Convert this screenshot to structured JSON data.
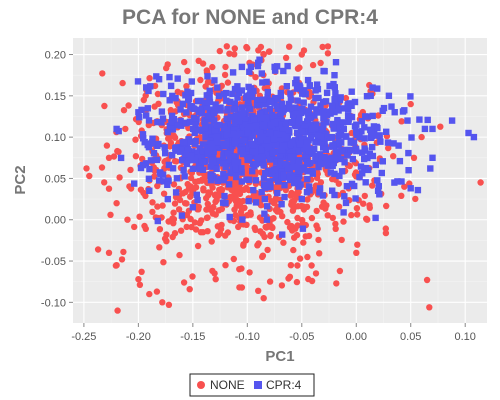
{
  "chart_data": {
    "type": "scatter",
    "title": "PCA for NONE and CPR:4",
    "xlabel": "PC1",
    "ylabel": "PC2",
    "xlim": [
      -0.26,
      0.12
    ],
    "ylim": [
      -0.125,
      0.22
    ],
    "xticks": [
      "-0.25",
      "-0.20",
      "-0.15",
      "-0.10",
      "-0.05",
      "0.00",
      "0.05",
      "0.10"
    ],
    "xtick_values": [
      -0.25,
      -0.2,
      -0.15,
      -0.1,
      -0.05,
      0.0,
      0.05,
      0.1
    ],
    "yticks": [
      "-0.10",
      "-0.05",
      "0.00",
      "0.05",
      "0.10",
      "0.15",
      "0.20"
    ],
    "ytick_values": [
      -0.1,
      -0.05,
      0.0,
      0.05,
      0.1,
      0.15,
      0.2
    ],
    "grid": true,
    "legend_position": "bottom",
    "series": [
      {
        "name": "NONE",
        "marker": "circle",
        "color": "#f8504f",
        "cluster": {
          "center": [
            -0.1,
            0.07
          ],
          "spread": [
            0.055,
            0.055
          ],
          "count": 1100
        },
        "points": [
          [
            -0.245,
            0.053
          ],
          [
            -0.237,
            -0.036
          ],
          [
            -0.215,
            -0.048
          ],
          [
            -0.22,
            -0.055
          ],
          [
            -0.197,
            -0.063
          ],
          [
            -0.183,
            -0.087
          ],
          [
            -0.178,
            -0.1
          ],
          [
            -0.158,
            -0.076
          ],
          [
            -0.172,
            -0.103
          ],
          [
            -0.2,
            -0.072
          ],
          [
            -0.085,
            -0.095
          ],
          [
            -0.09,
            -0.086
          ],
          [
            -0.13,
            -0.065
          ],
          [
            -0.12,
            -0.055
          ],
          [
            0.067,
            -0.106
          ],
          [
            0.065,
            -0.073
          ],
          [
            -0.037,
            -0.065
          ],
          [
            -0.06,
            -0.055
          ],
          [
            -0.015,
            -0.062
          ],
          [
            -0.098,
            0.19
          ],
          [
            -0.048,
            0.205
          ],
          [
            -0.05,
            0.2
          ],
          [
            -0.085,
            0.2
          ],
          [
            -0.137,
            0.178
          ],
          [
            -0.16,
            0.153
          ],
          [
            -0.195,
            0.145
          ],
          [
            -0.155,
            0.18
          ],
          [
            -0.12,
            0.185
          ],
          [
            0.05,
            0.14
          ],
          [
            0.06,
            0.1
          ],
          [
            0.053,
            0.075
          ],
          [
            -0.227,
            -0.04
          ],
          [
            -0.21,
            0.0
          ],
          [
            -0.22,
            0.02
          ],
          [
            -0.227,
            0.075
          ],
          [
            -0.212,
            0.11
          ],
          [
            0.0,
            -0.04
          ],
          [
            0.01,
            0.0
          ],
          [
            -0.105,
            -0.082
          ],
          [
            -0.19,
            -0.09
          ]
        ]
      },
      {
        "name": "CPR:4",
        "marker": "square",
        "color": "#5555ef",
        "cluster": {
          "center": [
            -0.08,
            0.1
          ],
          "spread": [
            0.05,
            0.033
          ],
          "count": 1100
        },
        "points": [
          [
            -0.22,
            0.11
          ],
          [
            -0.2,
            0.13
          ],
          [
            -0.17,
            0.162
          ],
          [
            -0.155,
            0.155
          ],
          [
            -0.105,
            0.185
          ],
          [
            -0.09,
            0.19
          ],
          [
            -0.075,
            0.185
          ],
          [
            -0.067,
            0.18
          ],
          [
            -0.03,
            0.18
          ],
          [
            -0.02,
            0.175
          ],
          [
            0.015,
            0.16
          ],
          [
            0.03,
            0.15
          ],
          [
            0.047,
            0.12
          ],
          [
            0.063,
            0.11
          ],
          [
            0.07,
            0.11
          ],
          [
            0.088,
            0.12
          ],
          [
            0.103,
            0.105
          ],
          [
            0.108,
            0.1
          ],
          [
            0.07,
            0.075
          ],
          [
            0.068,
            0.062
          ],
          [
            0.048,
            0.06
          ],
          [
            0.05,
            0.038
          ],
          [
            0.035,
            0.045
          ],
          [
            0.02,
            0.035
          ],
          [
            -0.02,
            0.03
          ],
          [
            -0.05,
            0.025
          ],
          [
            -0.068,
            -0.018
          ],
          [
            -0.082,
            0.0
          ],
          [
            -0.12,
            0.02
          ],
          [
            -0.15,
            0.015
          ],
          [
            -0.16,
            0.005
          ],
          [
            -0.173,
            0.025
          ],
          [
            -0.19,
            0.035
          ],
          [
            -0.14,
            0.07
          ],
          [
            -0.045,
            0.07
          ],
          [
            0.0,
            0.115
          ]
        ]
      }
    ]
  }
}
